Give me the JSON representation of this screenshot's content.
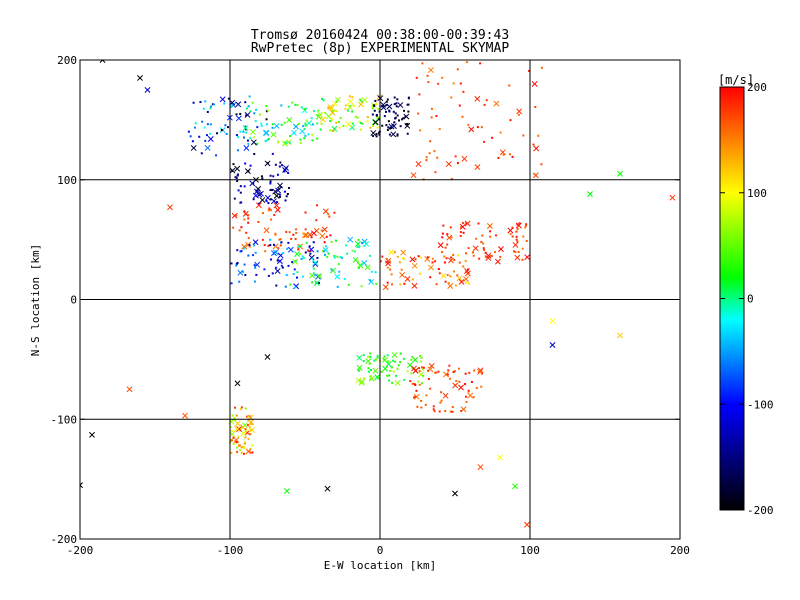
{
  "chart_data": {
    "type": "scatter",
    "title": "Tromsø 20160424 00:38:00-00:39:43",
    "subtitle": "RwPretec (8p) EXPERIMENTAL SKYMAP",
    "xlabel": "E-W location [km]",
    "ylabel": "N-S location [km]",
    "xlim": [
      -200,
      200
    ],
    "ylim": [
      -200,
      200
    ],
    "x_ticks": [
      -200,
      -100,
      0,
      100,
      200
    ],
    "y_ticks": [
      -200,
      -100,
      0,
      100,
      200
    ],
    "x_tick_labels": [
      "-200",
      "-100",
      "0",
      "100",
      "200"
    ],
    "y_tick_labels": [
      "-200",
      "-100",
      "0",
      "100",
      "200"
    ],
    "grid": true,
    "colorbar": {
      "label": "[m/s]",
      "range": [
        -200,
        200
      ],
      "ticks": [
        -200,
        -100,
        0,
        100,
        200
      ],
      "tick_labels": [
        "-200",
        "-100",
        "0",
        "100",
        "200"
      ],
      "colors": [
        "#000000",
        "#0000ff",
        "#00ffff",
        "#00ff00",
        "#ffff00",
        "#ff0000"
      ]
    },
    "clusters": [
      {
        "x": [
          -130,
          -70
        ],
        "y": [
          120,
          170
        ],
        "v": [
          -200,
          0
        ]
      },
      {
        "x": [
          -90,
          -40
        ],
        "y": [
          130,
          165
        ],
        "v": [
          -50,
          80
        ]
      },
      {
        "x": [
          -40,
          0
        ],
        "y": [
          140,
          170
        ],
        "v": [
          0,
          140
        ]
      },
      {
        "x": [
          -5,
          20
        ],
        "y": [
          135,
          170
        ],
        "v": [
          -200,
          -150
        ]
      },
      {
        "x": [
          -100,
          -60
        ],
        "y": [
          80,
          115
        ],
        "v": [
          -200,
          -100
        ]
      },
      {
        "x": [
          -100,
          -30
        ],
        "y": [
          40,
          80
        ],
        "v": [
          150,
          200
        ]
      },
      {
        "x": [
          -100,
          -40
        ],
        "y": [
          10,
          50
        ],
        "v": [
          -150,
          -30
        ]
      },
      {
        "x": [
          -60,
          0
        ],
        "y": [
          10,
          50
        ],
        "v": [
          -50,
          60
        ]
      },
      {
        "x": [
          0,
          60
        ],
        "y": [
          10,
          40
        ],
        "v": [
          100,
          200
        ]
      },
      {
        "x": [
          40,
          100
        ],
        "y": [
          30,
          65
        ],
        "v": [
          150,
          200
        ]
      },
      {
        "x": [
          -15,
          30
        ],
        "y": [
          -70,
          -45
        ],
        "v": [
          0,
          80
        ]
      },
      {
        "x": [
          20,
          70
        ],
        "y": [
          -95,
          -55
        ],
        "v": [
          150,
          200
        ]
      },
      {
        "x": [
          -100,
          -85
        ],
        "y": [
          -130,
          -90
        ],
        "v": [
          50,
          200
        ]
      },
      {
        "x": [
          20,
          110
        ],
        "y": [
          100,
          200
        ],
        "v": [
          150,
          200
        ]
      }
    ],
    "scattered_markers": [
      {
        "x": -200,
        "y": -155,
        "v": -200
      },
      {
        "x": -192,
        "y": -113,
        "v": -200
      },
      {
        "x": -167,
        "y": -75,
        "v": 170
      },
      {
        "x": -130,
        "y": -97,
        "v": 170
      },
      {
        "x": -95,
        "y": -70,
        "v": -200
      },
      {
        "x": -62,
        "y": -160,
        "v": 20
      },
      {
        "x": -35,
        "y": -158,
        "v": -200
      },
      {
        "x": 50,
        "y": -162,
        "v": -200
      },
      {
        "x": 67,
        "y": -140,
        "v": 170
      },
      {
        "x": 80,
        "y": -132,
        "v": 100
      },
      {
        "x": 90,
        "y": -156,
        "v": 30
      },
      {
        "x": 98,
        "y": -188,
        "v": 180
      },
      {
        "x": 115,
        "y": -38,
        "v": -120
      },
      {
        "x": 160,
        "y": -30,
        "v": 120
      },
      {
        "x": 115,
        "y": -18,
        "v": 100
      },
      {
        "x": 160,
        "y": 105,
        "v": 20
      },
      {
        "x": 195,
        "y": 85,
        "v": 180
      },
      {
        "x": 140,
        "y": 88,
        "v": 20
      },
      {
        "x": -140,
        "y": 77,
        "v": 180
      },
      {
        "x": -185,
        "y": 200,
        "v": -200
      },
      {
        "x": -160,
        "y": 185,
        "v": -200
      },
      {
        "x": -155,
        "y": 175,
        "v": -120
      },
      {
        "x": -75,
        "y": -48,
        "v": -200
      }
    ]
  }
}
